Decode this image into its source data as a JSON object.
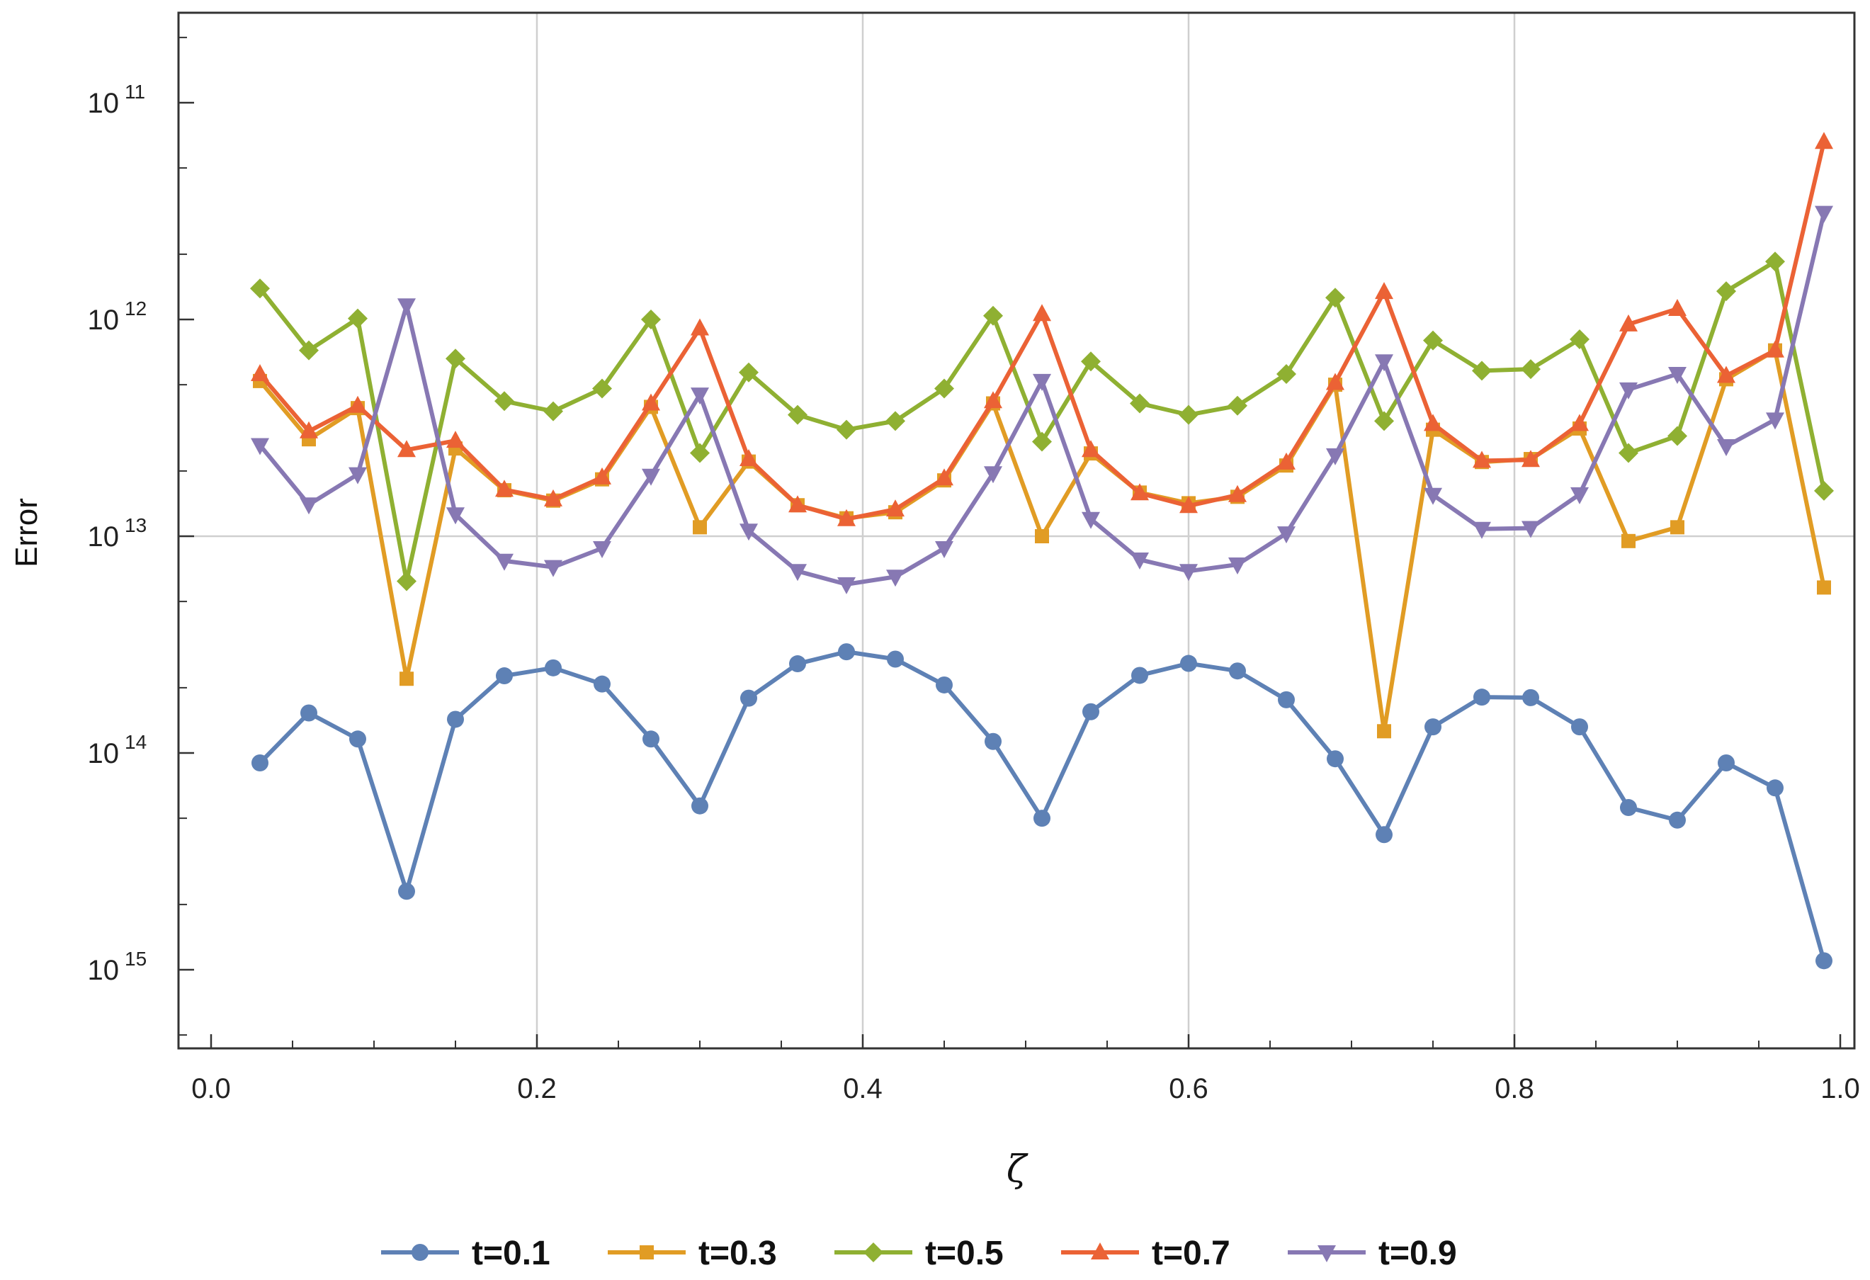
{
  "chart_data": {
    "type": "line",
    "xlabel": "ζ",
    "ylabel": "Error",
    "xlim": [
      -0.02,
      1.01
    ],
    "ylim": [
      1.7e-15,
      1.3e-11
    ],
    "yscale": "log",
    "grid": "x at 0.2, 0.4, 0.6, 0.8; y at 10^-13",
    "legend_position": "bottom",
    "x_ticks": [
      "0.0",
      "0.2",
      "0.4",
      "0.6",
      "0.8",
      "1.0"
    ],
    "y_ticks": [
      {
        "base": "10",
        "exp": "11"
      },
      {
        "base": "10",
        "exp": "12"
      },
      {
        "base": "10",
        "exp": "13"
      },
      {
        "base": "10",
        "exp": "14"
      },
      {
        "base": "10",
        "exp": "15"
      }
    ],
    "x": [
      0.03,
      0.06,
      0.09,
      0.12,
      0.15,
      0.18,
      0.21,
      0.24,
      0.27,
      0.3,
      0.33,
      0.36,
      0.39,
      0.42,
      0.45,
      0.48,
      0.51,
      0.54,
      0.57,
      0.6,
      0.63,
      0.66,
      0.69,
      0.72,
      0.75,
      0.78,
      0.81,
      0.84,
      0.87,
      0.9,
      0.93,
      0.96,
      0.99
    ],
    "series": [
      {
        "name": "t=0.1",
        "color": "#5e81b5",
        "marker": "circle",
        "values": [
          9e-15,
          1.53e-14,
          1.16e-14,
          2.3e-15,
          1.43e-14,
          2.27e-14,
          2.47e-14,
          2.08e-14,
          1.16e-14,
          5.7e-15,
          1.79e-14,
          2.58e-14,
          2.93e-14,
          2.71e-14,
          2.06e-14,
          1.13e-14,
          5e-15,
          1.55e-14,
          2.28e-14,
          2.59e-14,
          2.39e-14,
          1.76e-14,
          9.4e-15,
          4.2e-15,
          1.32e-14,
          1.81e-14,
          1.8e-14,
          1.32e-14,
          5.6e-15,
          4.9e-15,
          9e-15,
          6.9e-15,
          1.1e-15
        ]
      },
      {
        "name": "t=0.3",
        "color": "#e19c24",
        "marker": "square",
        "values": [
          5.2e-13,
          2.8e-13,
          3.9e-13,
          2.2e-14,
          2.54e-13,
          1.63e-13,
          1.46e-13,
          1.83e-13,
          3.95e-13,
          1.1e-13,
          2.21e-13,
          1.39e-13,
          1.21e-13,
          1.29e-13,
          1.81e-13,
          4.1e-13,
          1e-13,
          2.41e-13,
          1.59e-13,
          1.42e-13,
          1.52e-13,
          2.12e-13,
          5e-13,
          1.26e-14,
          3.1e-13,
          2.2e-13,
          2.27e-13,
          3.14e-13,
          9.5e-14,
          1.1e-13,
          5.3e-13,
          7.2e-13,
          5.8e-14
        ]
      },
      {
        "name": "t=0.5",
        "color": "#8fb032",
        "marker": "diamond",
        "values": [
          1.39e-12,
          7.2e-13,
          1.01e-12,
          6.2e-14,
          6.6e-13,
          4.2e-13,
          3.77e-13,
          4.8e-13,
          1e-12,
          2.42e-13,
          5.7e-13,
          3.63e-13,
          3.1e-13,
          3.4e-13,
          4.8e-13,
          1.04e-12,
          2.73e-13,
          6.4e-13,
          4.1e-13,
          3.63e-13,
          4e-13,
          5.6e-13,
          1.26e-12,
          3.4e-13,
          8e-13,
          5.8e-13,
          5.9e-13,
          8.1e-13,
          2.42e-13,
          2.9e-13,
          1.35e-12,
          1.85e-12,
          1.62e-13
        ]
      },
      {
        "name": "t=0.7",
        "color": "#eb6235",
        "marker": "triangle-up",
        "values": [
          5.6e-13,
          3.05e-13,
          4e-13,
          2.5e-13,
          2.76e-13,
          1.64e-13,
          1.48e-13,
          1.87e-13,
          4.1e-13,
          9.1e-13,
          2.27e-13,
          1.39e-13,
          1.2e-13,
          1.33e-13,
          1.85e-13,
          4.2e-13,
          1.06e-12,
          2.5e-13,
          1.58e-13,
          1.38e-13,
          1.55e-13,
          2.19e-13,
          5.1e-13,
          1.34e-12,
          3.3e-13,
          2.23e-13,
          2.25e-13,
          3.3e-13,
          9.5e-13,
          1.12e-12,
          5.5e-13,
          7.2e-13,
          6.6e-12
        ]
      },
      {
        "name": "t=0.9",
        "color": "#8778b3",
        "marker": "triangle-down",
        "values": [
          2.63e-13,
          1.4e-13,
          1.93e-13,
          1.16e-12,
          1.26e-13,
          7.7e-14,
          7.2e-14,
          8.8e-14,
          1.9e-13,
          4.5e-13,
          1.06e-13,
          6.9e-14,
          6e-14,
          6.5e-14,
          8.8e-14,
          1.95e-13,
          5.2e-13,
          1.2e-13,
          7.8e-14,
          6.9e-14,
          7.4e-14,
          1.03e-13,
          2.36e-13,
          6.4e-13,
          1.55e-13,
          1.08e-13,
          1.09e-13,
          1.56e-13,
          4.75e-13,
          5.6e-13,
          2.6e-13,
          3.45e-13,
          3.1e-12
        ]
      }
    ]
  }
}
